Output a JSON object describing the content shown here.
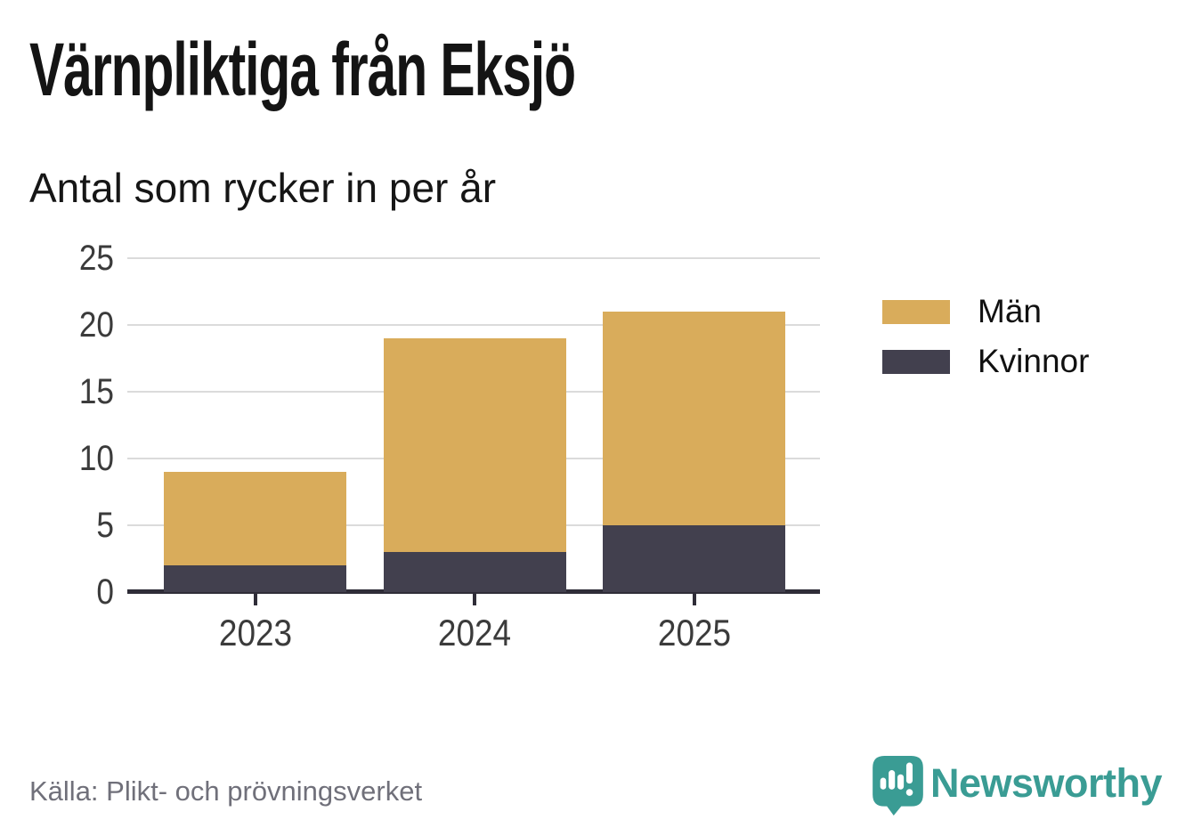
{
  "title": "Värnpliktiga från Eksjö",
  "subtitle": "Antal som rycker in per år",
  "source": "Källa: Plikt- och prövningsverket",
  "brand": {
    "name": "Newsworthy",
    "color": "#3A9C94"
  },
  "colors": {
    "man": "#D9AC5B",
    "kvinnor": "#42404E",
    "axis": "#2F2D38",
    "grid": "#DBDBDB",
    "tick_text": "#3B3B3B",
    "source_text": "#70707A"
  },
  "legend": [
    {
      "label": "Män",
      "color": "#D9AC5B"
    },
    {
      "label": "Kvinnor",
      "color": "#42404E"
    }
  ],
  "chart_data": {
    "type": "bar",
    "stacked": true,
    "title": "Värnpliktiga från Eksjö",
    "subtitle": "Antal som rycker in per år",
    "categories": [
      "2023",
      "2024",
      "2025"
    ],
    "series": [
      {
        "name": "Män",
        "color": "#D9AC5B",
        "values": [
          7,
          16,
          16
        ],
        "stack_position": "top"
      },
      {
        "name": "Kvinnor",
        "color": "#42404E",
        "values": [
          2,
          3,
          5
        ],
        "stack_position": "bottom"
      }
    ],
    "totals": [
      9,
      19,
      21
    ],
    "xlabel": "",
    "ylabel": "",
    "ylim": [
      0,
      25
    ],
    "yticks": [
      0,
      5,
      10,
      15,
      20,
      25
    ],
    "grid": "horizontal",
    "legend_position": "right"
  }
}
